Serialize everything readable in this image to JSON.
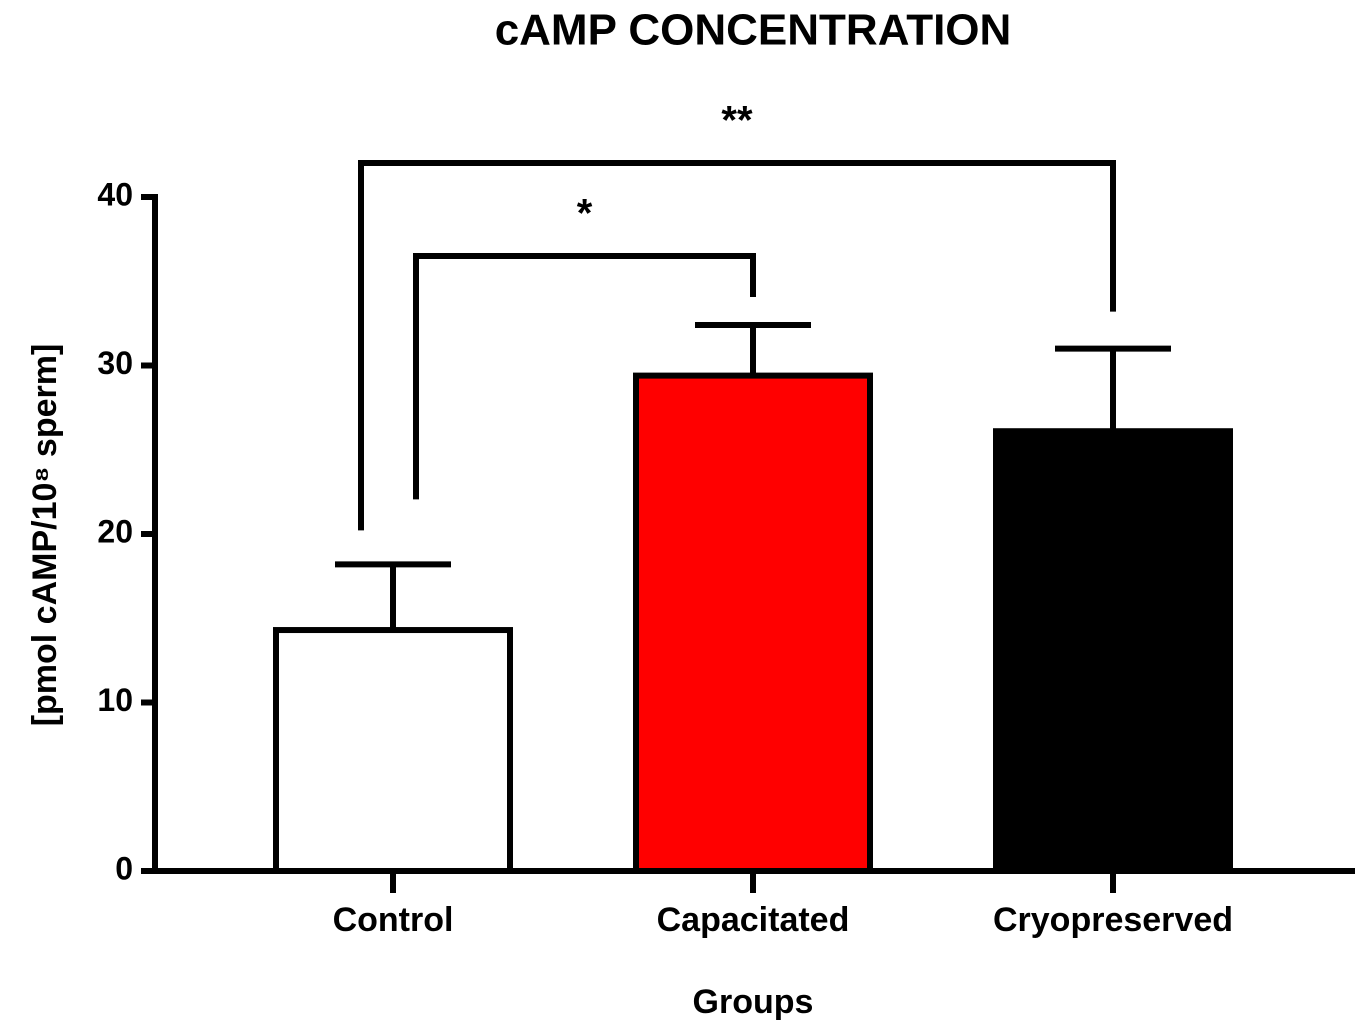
{
  "chart_data": {
    "type": "bar",
    "title": "cAMP CONCENTRATION",
    "x_label": "Groups",
    "y_label": "[pmol cAMP/10⁸ sperm]",
    "categories": [
      "Control",
      "Capacitated",
      "Cryopreserved"
    ],
    "values": [
      14.3,
      29.4,
      26.1
    ],
    "errors": [
      3.9,
      3.0,
      4.9
    ],
    "colors": [
      "#ffffff",
      "#ff0000",
      "#000000"
    ],
    "ylim": [
      0,
      40
    ],
    "yticks": [
      0,
      10,
      20,
      30,
      40
    ],
    "annotations": [
      {
        "text": "**",
        "between": [
          0,
          2
        ]
      },
      {
        "text": "*",
        "between": [
          0,
          1
        ]
      }
    ]
  }
}
